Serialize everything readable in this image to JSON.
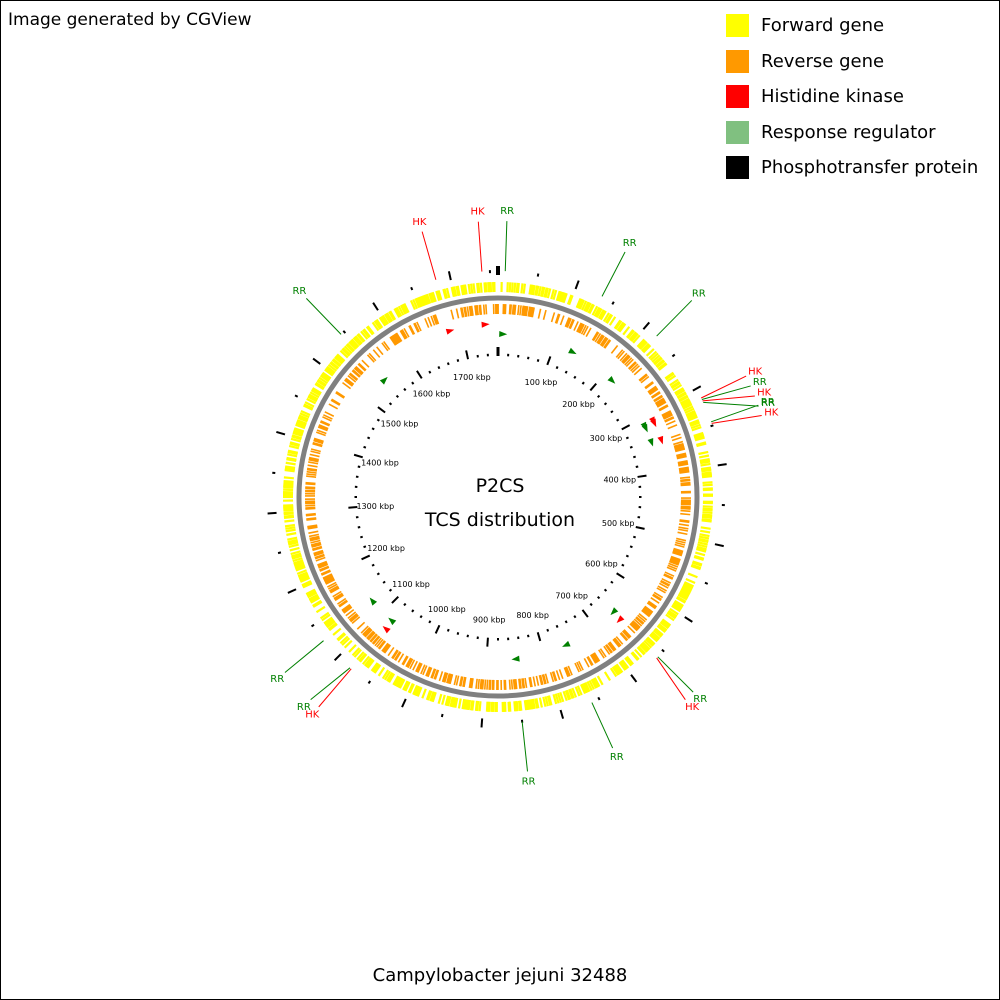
{
  "header": {
    "credit": "Image generated by CGView"
  },
  "legend": {
    "items": [
      {
        "label": "Forward gene",
        "color": "#ffff00"
      },
      {
        "label": "Reverse gene",
        "color": "#ff9900"
      },
      {
        "label": "Histidine kinase",
        "color": "#ff0000"
      },
      {
        "label": "Response regulator",
        "color": "#80c080"
      },
      {
        "label": "Phosphotransfer protein",
        "color": "#000000"
      }
    ]
  },
  "map": {
    "center_title": "P2CS",
    "center_subtitle": "TCS distribution",
    "sequence_length_kbp": 1760,
    "tick_labels": [
      "100 kbp",
      "200 kbp",
      "300 kbp",
      "400 kbp",
      "500 kbp",
      "600 kbp",
      "700 kbp",
      "800 kbp",
      "900 kbp",
      "1000 kbp",
      "1100 kbp",
      "1200 kbp",
      "1300 kbp",
      "1400 kbp",
      "1500 kbp",
      "1600 kbp",
      "1700 kbp"
    ],
    "tick_positions_kbp": [
      100,
      200,
      300,
      400,
      500,
      600,
      700,
      800,
      900,
      1000,
      1100,
      1200,
      1300,
      1400,
      1500,
      1600,
      1700
    ],
    "features": [
      {
        "label": "RR",
        "kind": "RR",
        "pos_kbp": 9
      },
      {
        "label": "HK",
        "kind": "HK",
        "pos_kbp": 1740
      },
      {
        "label": "HK",
        "kind": "HK",
        "pos_kbp": 1682
      },
      {
        "label": "RR",
        "kind": "RR",
        "pos_kbp": 134
      },
      {
        "label": "RR",
        "kind": "RR",
        "pos_kbp": 218
      },
      {
        "label": "HK",
        "kind": "HK",
        "pos_kbp": 313
      },
      {
        "label": "RR",
        "kind": "RR",
        "pos_kbp": 315
      },
      {
        "label": "HK",
        "kind": "HK",
        "pos_kbp": 317
      },
      {
        "label": "RR",
        "kind": "RR",
        "pos_kbp": 319
      },
      {
        "label": "RR",
        "kind": "RR",
        "pos_kbp": 345
      },
      {
        "label": "HK",
        "kind": "HK",
        "pos_kbp": 347
      },
      {
        "label": "RR",
        "kind": "RR",
        "pos_kbp": 660
      },
      {
        "label": "HK",
        "kind": "HK",
        "pos_kbp": 662
      },
      {
        "label": "RR",
        "kind": "RR",
        "pos_kbp": 760
      },
      {
        "label": "RR",
        "kind": "RR",
        "pos_kbp": 850
      },
      {
        "label": "RR",
        "kind": "RR",
        "pos_kbp": 1127
      },
      {
        "label": "RR",
        "kind": "RR",
        "pos_kbp": 1080
      },
      {
        "label": "HK",
        "kind": "HK",
        "pos_kbp": 1078
      },
      {
        "label": "RR",
        "kind": "RR",
        "pos_kbp": 1545
      }
    ]
  },
  "footer": {
    "organism": "Campylobacter jejuni 32488"
  }
}
